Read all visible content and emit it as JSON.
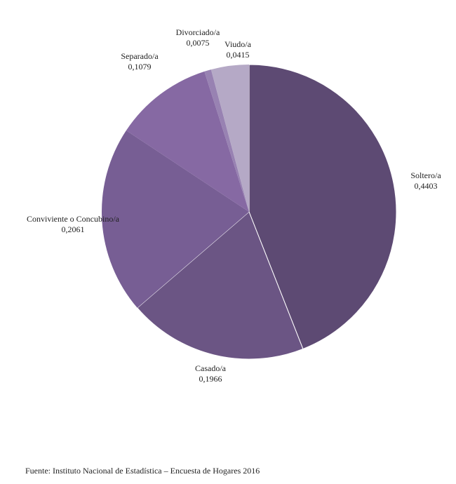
{
  "chart_data": {
    "type": "pie",
    "start_angle": "12 o'clock",
    "direction": "clockwise",
    "slices": [
      {
        "label": "Soltero/a",
        "value_text": "0,4403",
        "value": 0.4403,
        "color": "#5d4a73"
      },
      {
        "label": "Casado/a",
        "value_text": "0,1966",
        "value": 0.1966,
        "color": "#6b5584"
      },
      {
        "label": "Conviviente o Concubino/a",
        "value_text": "0,2061",
        "value": 0.2061,
        "color": "#775e94"
      },
      {
        "label": "Separado/a",
        "value_text": "0,1079",
        "value": 0.1079,
        "color": "#8669a3"
      },
      {
        "label": "Divorciado/a",
        "value_text": "0,0075",
        "value": 0.0075,
        "color": "#9882b2"
      },
      {
        "label": "Viudo/a",
        "value_text": "0,0415",
        "value": 0.0415,
        "color": "#b5a9c6"
      }
    ]
  },
  "source": "Fuente: Instituto Nacional de Estadística – Encuesta de Hogares 2016"
}
